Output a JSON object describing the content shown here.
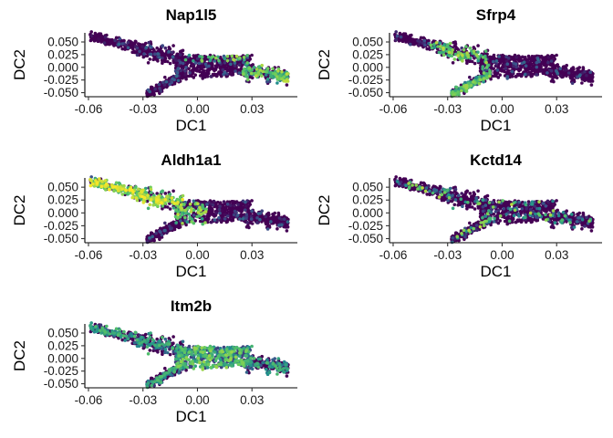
{
  "chart_data": [
    {
      "type": "scatter",
      "title": "Nap1l5",
      "xlabel": "DC1",
      "ylabel": "DC2",
      "xlim": [
        -0.062,
        0.055
      ],
      "ylim": [
        -0.058,
        0.068
      ],
      "x_ticks": [
        -0.06,
        -0.03,
        0.0,
        0.03
      ],
      "x_tick_labels": [
        "-0.06",
        "-0.03",
        "0.00",
        "0.03"
      ],
      "y_ticks": [
        0.05,
        0.025,
        0.0,
        -0.025,
        -0.05
      ],
      "y_tick_labels": [
        "0.050",
        "0.025",
        "0.000",
        "-0.025",
        "-0.050"
      ],
      "grid": false,
      "colormap": "viridis",
      "expression_hotspot": "right-arm",
      "point_count": 900
    },
    {
      "type": "scatter",
      "title": "Sfrp4",
      "xlabel": "DC1",
      "ylabel": "DC2",
      "xlim": [
        -0.062,
        0.055
      ],
      "ylim": [
        -0.058,
        0.068
      ],
      "x_ticks": [
        -0.06,
        -0.03,
        0.0,
        0.03
      ],
      "x_tick_labels": [
        "-0.06",
        "-0.03",
        "0.00",
        "0.03"
      ],
      "y_ticks": [
        0.05,
        0.025,
        0.0,
        -0.025,
        -0.05
      ],
      "y_tick_labels": [
        "0.050",
        "0.025",
        "0.000",
        "-0.025",
        "-0.050"
      ],
      "grid": false,
      "colormap": "viridis",
      "expression_hotspot": "lower-left-branch",
      "point_count": 900
    },
    {
      "type": "scatter",
      "title": "Aldh1a1",
      "xlabel": "DC1",
      "ylabel": "DC2",
      "xlim": [
        -0.062,
        0.055
      ],
      "ylim": [
        -0.058,
        0.068
      ],
      "x_ticks": [
        -0.06,
        -0.03,
        0.0,
        0.03
      ],
      "x_tick_labels": [
        "-0.06",
        "-0.03",
        "0.00",
        "0.03"
      ],
      "y_ticks": [
        0.05,
        0.025,
        0.0,
        -0.025,
        -0.05
      ],
      "y_tick_labels": [
        "0.050",
        "0.025",
        "0.000",
        "-0.025",
        "-0.050"
      ],
      "grid": false,
      "colormap": "viridis",
      "expression_hotspot": "upper-left-branch",
      "point_count": 900
    },
    {
      "type": "scatter",
      "title": "Kctd14",
      "xlabel": "DC1",
      "ylabel": "DC2",
      "xlim": [
        -0.062,
        0.055
      ],
      "ylim": [
        -0.058,
        0.068
      ],
      "x_ticks": [
        -0.06,
        -0.03,
        0.0,
        0.03
      ],
      "x_tick_labels": [
        "-0.06",
        "-0.03",
        "0.00",
        "0.03"
      ],
      "y_ticks": [
        0.05,
        0.025,
        0.0,
        -0.025,
        -0.05
      ],
      "y_tick_labels": [
        "0.050",
        "0.025",
        "0.000",
        "-0.025",
        "-0.050"
      ],
      "grid": false,
      "colormap": "viridis",
      "expression_hotspot": "sparse",
      "point_count": 900
    },
    {
      "type": "scatter",
      "title": "Itm2b",
      "xlabel": "DC1",
      "ylabel": "DC2",
      "xlim": [
        -0.062,
        0.055
      ],
      "ylim": [
        -0.058,
        0.068
      ],
      "x_ticks": [
        -0.06,
        -0.03,
        0.0,
        0.03
      ],
      "x_tick_labels": [
        "-0.06",
        "-0.03",
        "0.00",
        "0.03"
      ],
      "y_ticks": [
        0.05,
        0.025,
        0.0,
        -0.025,
        -0.05
      ],
      "y_tick_labels": [
        "0.050",
        "0.025",
        "0.000",
        "-0.025",
        "-0.050"
      ],
      "grid": false,
      "colormap": "viridis",
      "expression_hotspot": "center",
      "point_count": 900
    }
  ]
}
